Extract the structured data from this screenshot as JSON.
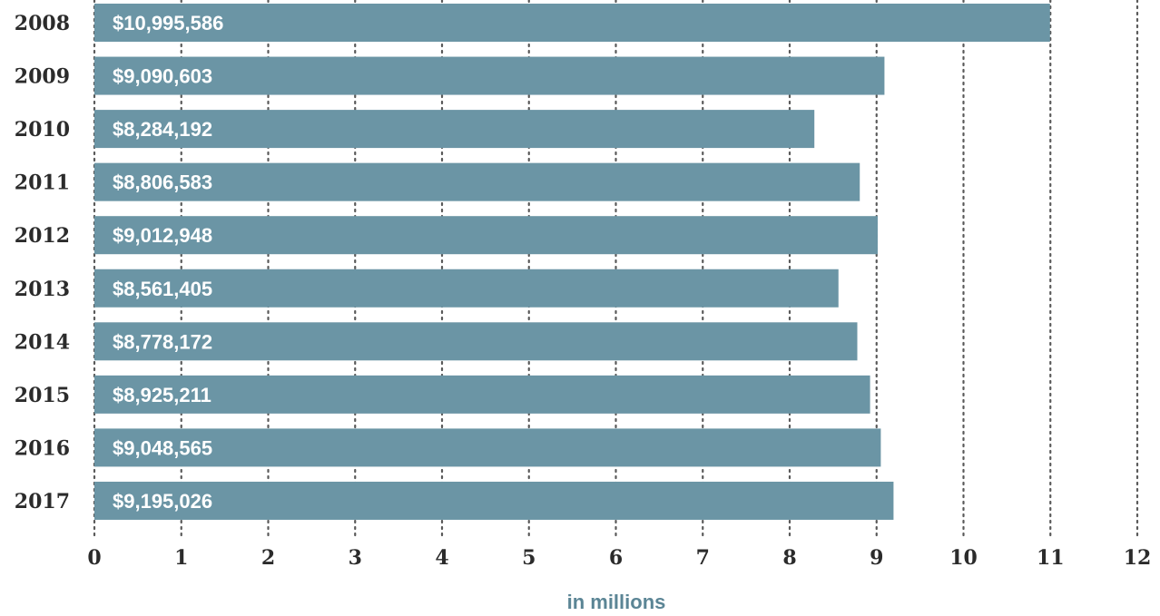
{
  "chart_data": {
    "type": "bar",
    "orientation": "horizontal",
    "categories": [
      "2008",
      "2009",
      "2010",
      "2011",
      "2012",
      "2013",
      "2014",
      "2015",
      "2016",
      "2017"
    ],
    "values": [
      10995586,
      9090603,
      8284192,
      8806583,
      9012948,
      8561405,
      8778172,
      8925211,
      9048565,
      9195026
    ],
    "value_labels": [
      "$10,995,586",
      "$9,090,603",
      "$8,284,192",
      "$8,806,583",
      "$9,012,948",
      "$8,561,405",
      "$8,778,172",
      "$8,925,211",
      "$9,048,565",
      "$9,195,026"
    ],
    "title": "",
    "xlabel": "in millions",
    "ylabel": "",
    "xlim": [
      0,
      12
    ],
    "xticks": [
      0,
      1,
      2,
      3,
      4,
      5,
      6,
      7,
      8,
      9,
      10,
      11,
      12
    ],
    "tick_labels": [
      "0",
      "1",
      "2",
      "3",
      "4",
      "5",
      "6",
      "7",
      "8",
      "9",
      "10",
      "11",
      "12"
    ],
    "grid": true,
    "legend": "none",
    "colors": {
      "bar": "#6b95a5",
      "value_label": "#ffffff",
      "axis_title": "#5b8595",
      "text": "#2b2b2b",
      "grid": "#5a5a5a"
    }
  }
}
